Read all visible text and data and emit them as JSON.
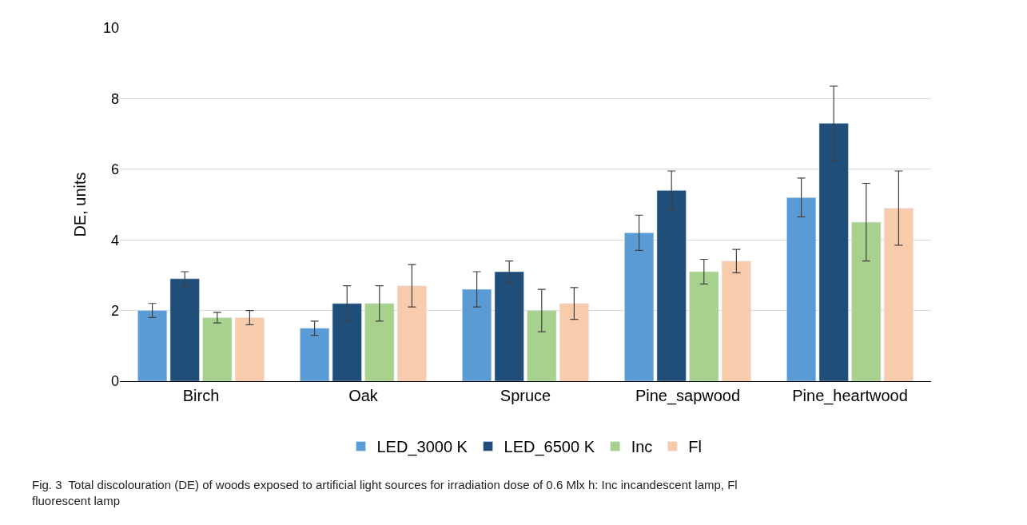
{
  "chart_data": {
    "type": "bar",
    "ylabel": "DE, units",
    "categories": [
      "Birch",
      "Oak",
      "Spruce",
      "Pine_sapwood",
      "Pine_heartwood"
    ],
    "series": [
      {
        "name": "LED_3000 K",
        "color": "#5b9bd5",
        "values": [
          2.0,
          1.5,
          2.6,
          4.2,
          5.2
        ],
        "errors": [
          0.2,
          0.2,
          0.5,
          0.5,
          0.55
        ]
      },
      {
        "name": "LED_6500 K",
        "color": "#1f4e79",
        "values": [
          2.9,
          2.2,
          3.1,
          5.4,
          7.3
        ],
        "errors": [
          0.2,
          0.5,
          0.3,
          0.55,
          1.05
        ]
      },
      {
        "name": "Inc",
        "color": "#a9d18e",
        "values": [
          1.8,
          2.2,
          2.0,
          3.1,
          4.5
        ],
        "errors": [
          0.15,
          0.5,
          0.6,
          0.35,
          1.1
        ]
      },
      {
        "name": "Fl",
        "color": "#f8cbad",
        "values": [
          1.8,
          2.7,
          2.2,
          3.4,
          4.9
        ],
        "errors": [
          0.2,
          0.6,
          0.45,
          0.33,
          1.05
        ]
      }
    ],
    "ylim": [
      0,
      10
    ],
    "yticks": [
      0,
      2,
      4,
      6,
      8,
      10
    ],
    "grid": "y",
    "legend": "bottom",
    "annotations": [
      "Fig. 3  Total discolouration (DE) of woods exposed to artificial light sources for irradiation dose of 0.6 Mlx h: Inc incandescent lamp, Fl fluorescent lamp"
    ]
  }
}
